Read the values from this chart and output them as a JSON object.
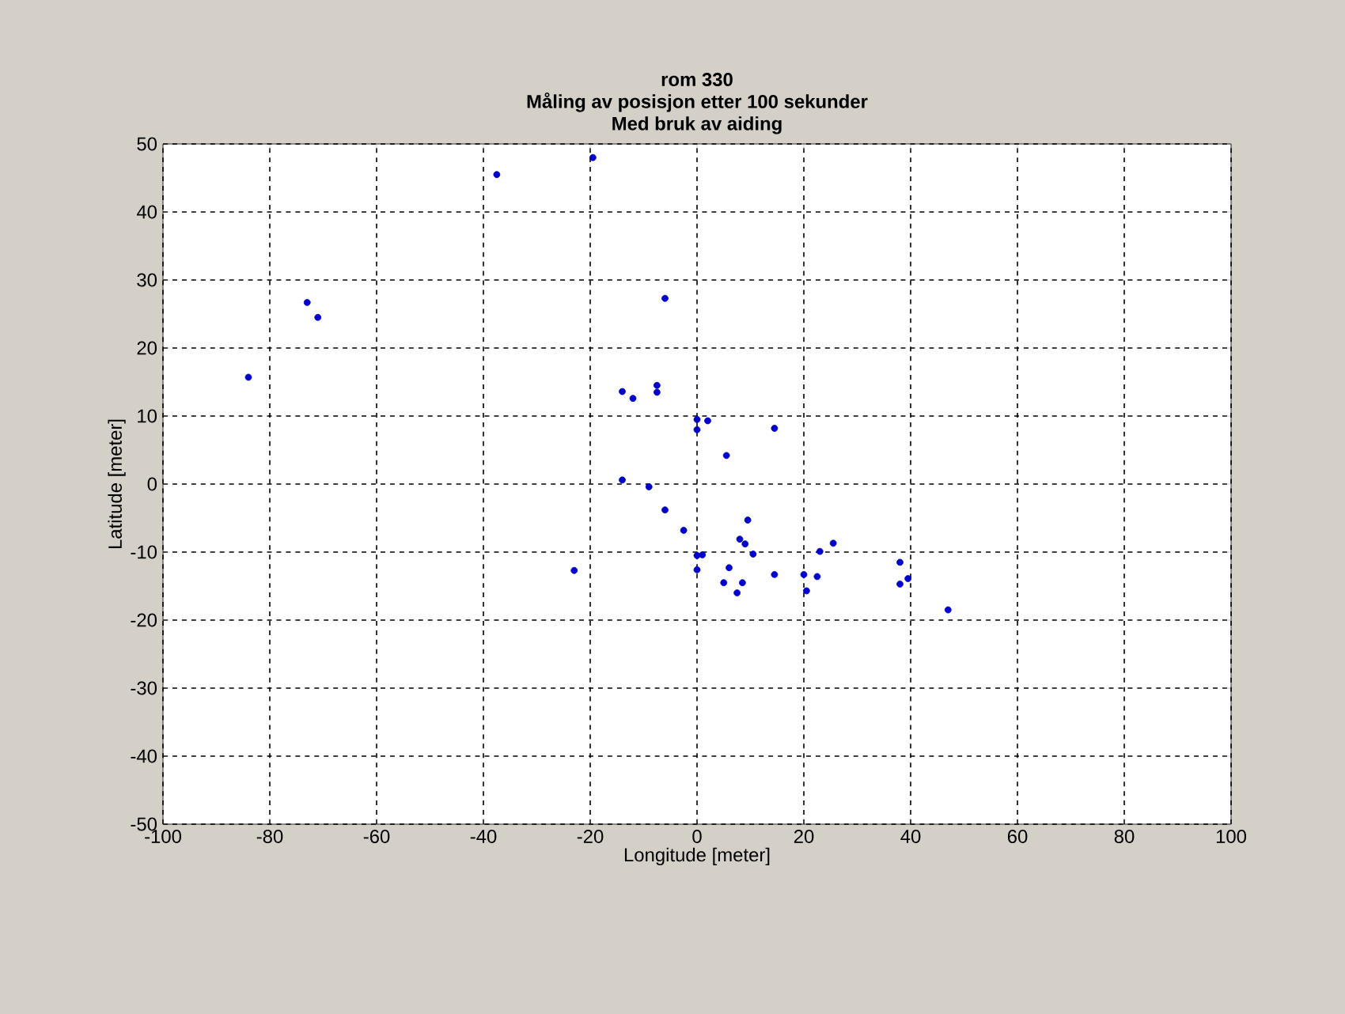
{
  "chart_data": {
    "type": "scatter",
    "title": "rom 330",
    "subtitle": "Måling av posisjon etter 100 sekunder\nMed bruk av aiding",
    "xlabel": "Longitude [meter]",
    "ylabel": "Latitude [meter]",
    "xlim": [
      -100,
      100
    ],
    "ylim": [
      -50,
      50
    ],
    "xticks": [
      -100,
      -80,
      -60,
      -40,
      -20,
      0,
      20,
      40,
      60,
      80,
      100
    ],
    "yticks": [
      -50,
      -40,
      -30,
      -20,
      -10,
      0,
      10,
      20,
      30,
      40,
      50
    ],
    "grid": true,
    "series": [
      {
        "color": "#0000cc",
        "x": [
          -84,
          -73,
          -71,
          -37.5,
          -19.5,
          -6,
          -14,
          -12,
          -7.5,
          -7.5,
          0,
          0,
          2,
          14.5,
          5.5,
          -14,
          -9,
          -6,
          -2.5,
          0,
          0,
          1,
          6,
          5,
          7.5,
          8,
          9,
          9.5,
          10.5,
          8.5,
          14.5,
          20,
          20.5,
          22.5,
          23,
          25.5,
          38,
          38,
          39.5,
          47,
          -23
        ],
        "values": [
          15.7,
          26.7,
          24.5,
          45.5,
          48,
          27.3,
          13.6,
          12.6,
          14.5,
          13.5,
          9.5,
          8,
          9.3,
          8.2,
          4.2,
          0.6,
          -0.4,
          -3.8,
          -6.8,
          -10.5,
          -12.6,
          -10.4,
          -12.3,
          -14.5,
          -16,
          -8.1,
          -8.8,
          -5.3,
          -10.3,
          -14.5,
          -13.3,
          -13.3,
          -15.7,
          -13.6,
          -9.9,
          -8.7,
          -11.5,
          -14.7,
          -13.9,
          -18.5,
          -12.7
        ]
      }
    ]
  }
}
